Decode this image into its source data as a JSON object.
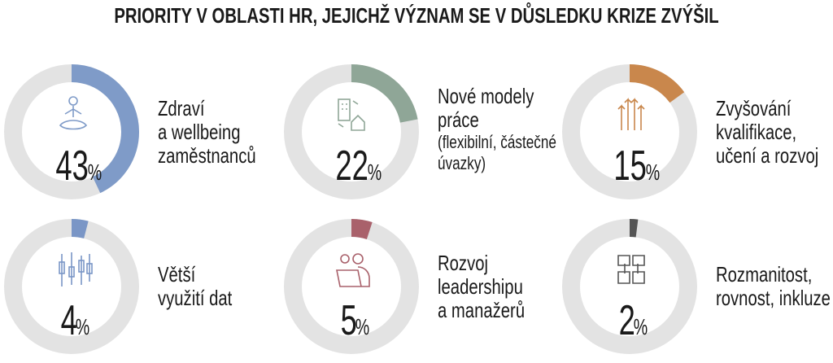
{
  "chart_data": {
    "type": "pie",
    "title": "PRIORITY V OBLASTI HR, JEJICHŽ VÝZNAM SE V DŮSLEDKU KRIZE ZVÝŠIL",
    "items": [
      {
        "label_lines": [
          "Zdraví",
          "a wellbeing",
          "zaměstnanců"
        ],
        "value": 43,
        "unit": "%",
        "color": "#7f9bc8",
        "icon": "meditation-icon"
      },
      {
        "label_lines": [
          "Nové modely",
          "práce"
        ],
        "sub_lines": [
          "(flexibilní, částečné",
          "úvazky)"
        ],
        "value": 22,
        "unit": "%",
        "color": "#8fa697",
        "icon": "office-home-icon"
      },
      {
        "label_lines": [
          "Zvyšování",
          "kvalifikace,",
          "učení a rozvoj"
        ],
        "value": 15,
        "unit": "%",
        "color": "#c9874c",
        "icon": "growth-arrows-icon"
      },
      {
        "label_lines": [
          "Větší",
          "využití dat"
        ],
        "value": 4,
        "unit": "%",
        "color": "#7a96c6",
        "icon": "candlestick-icon"
      },
      {
        "label_lines": [
          "Rozvoj",
          "leadershipu",
          "a manažerů"
        ],
        "value": 5,
        "unit": "%",
        "color": "#a9616b",
        "icon": "leader-idea-icon"
      },
      {
        "label_lines": [
          "Rozmanitost,",
          "rovnost, inkluze"
        ],
        "value": 2,
        "unit": "%",
        "color": "#555555",
        "icon": "joined-hands-icon"
      }
    ],
    "track_color": "#e3e3e3"
  }
}
